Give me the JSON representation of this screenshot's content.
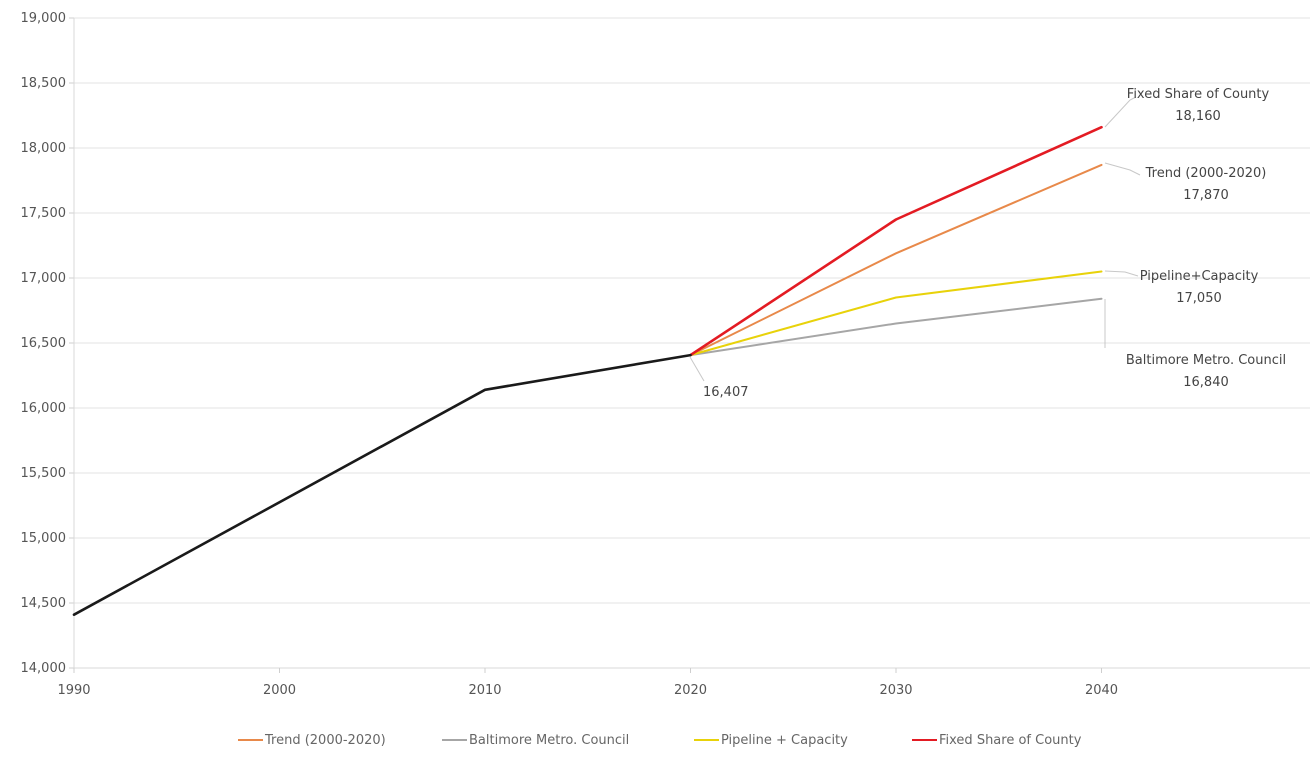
{
  "chart_data": {
    "type": "line",
    "title": "",
    "xlabel": "",
    "ylabel": "",
    "xlim": [
      1990,
      2050
    ],
    "ylim": [
      14000,
      19000
    ],
    "x_ticks": [
      "1990",
      "2000",
      "2010",
      "2020",
      "2030",
      "2040"
    ],
    "y_ticks": [
      "14,000",
      "14,500",
      "15,000",
      "15,500",
      "16,000",
      "16,500",
      "17,000",
      "17,500",
      "18,000",
      "18,500",
      "19,000"
    ],
    "grid": true,
    "legend_position": "bottom",
    "historical": {
      "color": "#1a1a1a",
      "points": [
        [
          1990,
          14410
        ],
        [
          2010,
          16140
        ],
        [
          2020,
          16407
        ]
      ]
    },
    "series": [
      {
        "name": "Trend (2000-2020)",
        "color": "#e8894a",
        "points": [
          [
            2020,
            16407
          ],
          [
            2030,
            17190
          ],
          [
            2040,
            17870
          ]
        ]
      },
      {
        "name": "Baltimore Metro. Council",
        "color": "#a6a6a6",
        "points": [
          [
            2020,
            16407
          ],
          [
            2030,
            16650
          ],
          [
            2040,
            16840
          ]
        ]
      },
      {
        "name": "Pipeline + Capacity",
        "color": "#e8d20a",
        "points": [
          [
            2020,
            16407
          ],
          [
            2030,
            16850
          ],
          [
            2040,
            17050
          ]
        ]
      },
      {
        "name": "Fixed Share of County",
        "color": "#e31b23",
        "points": [
          [
            2020,
            16407
          ],
          [
            2030,
            17450
          ],
          [
            2040,
            18160
          ]
        ]
      }
    ],
    "annotations": [
      {
        "id": "base",
        "lines": [
          "16,407"
        ],
        "point": [
          2020,
          16407
        ],
        "align": "left"
      },
      {
        "id": "fixed",
        "lines": [
          "Fixed Share of County",
          "18,160"
        ],
        "point": [
          2040,
          18160
        ],
        "align": "center"
      },
      {
        "id": "trend",
        "lines": [
          "Trend (2000-2020)",
          "17,870"
        ],
        "point": [
          2040,
          17870
        ],
        "align": "center"
      },
      {
        "id": "pipeline",
        "lines": [
          "Pipeline+Capacity",
          "17,050"
        ],
        "point": [
          2040,
          17050
        ],
        "align": "center"
      },
      {
        "id": "bmc",
        "lines": [
          "Baltimore Metro. Council",
          "16,840"
        ],
        "point": [
          2040,
          16840
        ],
        "align": "center"
      }
    ]
  }
}
